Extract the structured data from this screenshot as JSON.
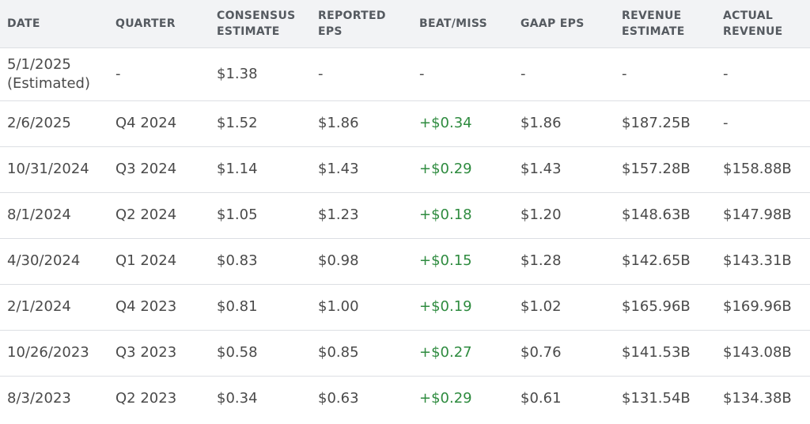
{
  "headers": {
    "date": [
      "DATE"
    ],
    "quarter": [
      "QUARTER"
    ],
    "consensus": [
      "CONSENSUS",
      "ESTIMATE"
    ],
    "reported": [
      "REPORTED",
      "EPS"
    ],
    "beat": [
      "BEAT/MISS"
    ],
    "gaap": [
      "GAAP EPS"
    ],
    "revenue_estimate": [
      "REVENUE",
      "ESTIMATE"
    ],
    "actual_revenue": [
      "ACTUAL",
      "REVENUE"
    ]
  },
  "colors": {
    "beat_positive": "#2e8b3f",
    "header_bg": "#f2f3f5",
    "row_border": "#dcdfe3"
  },
  "rows": [
    {
      "date": "5/1/2025",
      "date_note": "(Estimated)",
      "quarter": "-",
      "consensus": "$1.38",
      "reported": "-",
      "beat": "-",
      "gaap": "-",
      "revenue_estimate": "-",
      "actual_revenue": "-"
    },
    {
      "date": "2/6/2025",
      "date_note": "",
      "quarter": "Q4 2024",
      "consensus": "$1.52",
      "reported": "$1.86",
      "beat": "+$0.34",
      "gaap": "$1.86",
      "revenue_estimate": "$187.25B",
      "actual_revenue": "-"
    },
    {
      "date": "10/31/2024",
      "date_note": "",
      "quarter": "Q3 2024",
      "consensus": "$1.14",
      "reported": "$1.43",
      "beat": "+$0.29",
      "gaap": "$1.43",
      "revenue_estimate": "$157.28B",
      "actual_revenue": "$158.88B"
    },
    {
      "date": "8/1/2024",
      "date_note": "",
      "quarter": "Q2 2024",
      "consensus": "$1.05",
      "reported": "$1.23",
      "beat": "+$0.18",
      "gaap": "$1.20",
      "revenue_estimate": "$148.63B",
      "actual_revenue": "$147.98B"
    },
    {
      "date": "4/30/2024",
      "date_note": "",
      "quarter": "Q1 2024",
      "consensus": "$0.83",
      "reported": "$0.98",
      "beat": "+$0.15",
      "gaap": "$1.28",
      "revenue_estimate": "$142.65B",
      "actual_revenue": "$143.31B"
    },
    {
      "date": "2/1/2024",
      "date_note": "",
      "quarter": "Q4 2023",
      "consensus": "$0.81",
      "reported": "$1.00",
      "beat": "+$0.19",
      "gaap": "$1.02",
      "revenue_estimate": "$165.96B",
      "actual_revenue": "$169.96B"
    },
    {
      "date": "10/26/2023",
      "date_note": "",
      "quarter": "Q3 2023",
      "consensus": "$0.58",
      "reported": "$0.85",
      "beat": "+$0.27",
      "gaap": "$0.76",
      "revenue_estimate": "$141.53B",
      "actual_revenue": "$143.08B"
    },
    {
      "date": "8/3/2023",
      "date_note": "",
      "quarter": "Q2 2023",
      "consensus": "$0.34",
      "reported": "$0.63",
      "beat": "+$0.29",
      "gaap": "$0.61",
      "revenue_estimate": "$131.54B",
      "actual_revenue": "$134.38B"
    }
  ]
}
